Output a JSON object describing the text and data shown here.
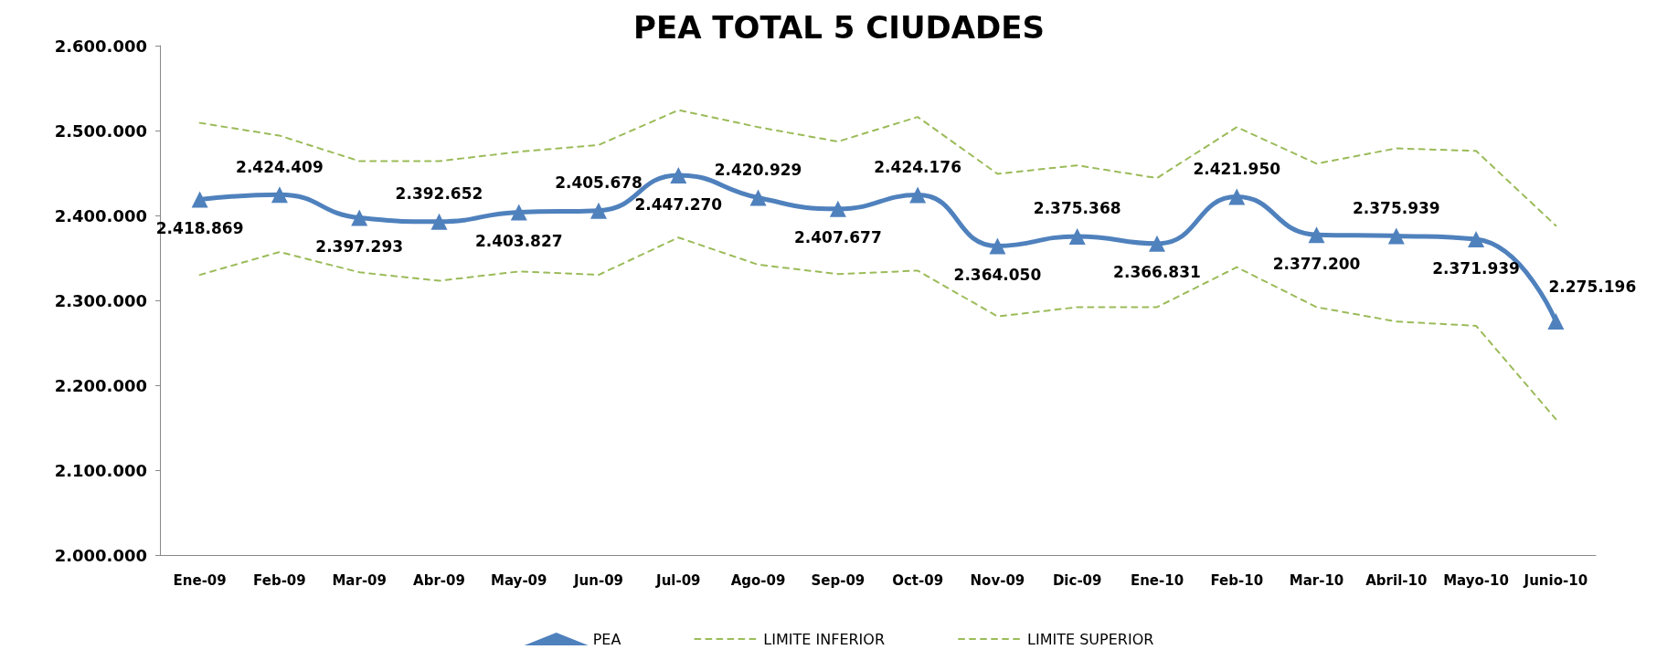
{
  "chart_data": {
    "type": "line",
    "title": "PEA TOTAL 5 CIUDADES",
    "categories": [
      "Ene-09",
      "Feb-09",
      "Mar-09",
      "Abr-09",
      "May-09",
      "Jun-09",
      "Jul-09",
      "Ago-09",
      "Sep-09",
      "Oct-09",
      "Nov-09",
      "Dic-09",
      "Ene-10",
      "Feb-10",
      "Mar-10",
      "Abril-10",
      "Mayo-10",
      "Junio-10"
    ],
    "series": [
      {
        "name": "PEA",
        "color": "#4f81bd",
        "marker": "triangle",
        "line_style": "solid",
        "values": [
          2418869,
          2424409,
          2397293,
          2392652,
          2403827,
          2405678,
          2447270,
          2420929,
          2407677,
          2424176,
          2364050,
          2375368,
          2366831,
          2421950,
          2377200,
          2375939,
          2371939,
          2275196
        ],
        "value_labels": [
          "2.418.869",
          "2.424.409",
          "2.397.293",
          "2.392.652",
          "2.403.827",
          "2.405.678",
          "2.447.270",
          "2.420.929",
          "2.407.677",
          "2.424.176",
          "2.364.050",
          "2.375.368",
          "2.366.831",
          "2.421.950",
          "2.377.200",
          "2.375.939",
          "2.371.939",
          "2.275.196"
        ]
      },
      {
        "name": "LIMITE INFERIOR",
        "color": "#9bbb59",
        "marker": "none",
        "line_style": "dashed",
        "values": [
          2330000,
          2357000,
          2333000,
          2323000,
          2334000,
          2330000,
          2374000,
          2342000,
          2331000,
          2335000,
          2281000,
          2292000,
          2292000,
          2339000,
          2292000,
          2275000,
          2270000,
          2160000
        ]
      },
      {
        "name": "LIMITE SUPERIOR",
        "color": "#9bbb59",
        "marker": "none",
        "line_style": "dashed",
        "values": [
          2509000,
          2494000,
          2464000,
          2464000,
          2475000,
          2483000,
          2524000,
          2504000,
          2487000,
          2516000,
          2449000,
          2459000,
          2444000,
          2504000,
          2461000,
          2479000,
          2476000,
          2388000
        ]
      }
    ],
    "ylim": [
      2000000,
      2600000
    ],
    "yticks": [
      {
        "value": 2000000,
        "label": "2.000.000"
      },
      {
        "value": 2100000,
        "label": "2.100.000"
      },
      {
        "value": 2200000,
        "label": "2.200.000"
      },
      {
        "value": 2300000,
        "label": "2.300.000"
      },
      {
        "value": 2400000,
        "label": "2.400.000"
      },
      {
        "value": 2500000,
        "label": "2.500.000"
      },
      {
        "value": 2600000,
        "label": "2.600.000"
      }
    ],
    "grid": false,
    "legend": "bottom"
  }
}
